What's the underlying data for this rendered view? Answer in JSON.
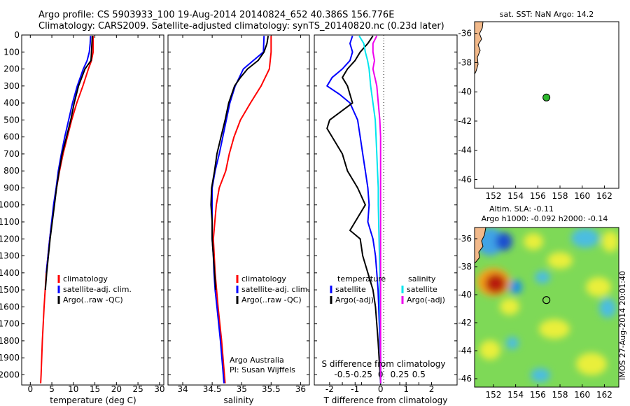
{
  "header": {
    "title_line1": "Argo profile: CS 5903933_100 19-Aug-2014 20140824_652 40.386S 156.776E",
    "title_line2": "Climatology: CARS2009. Satellite-adjusted climatology: synTS_20140820.nc (0.23d later)"
  },
  "colors": {
    "climatology": "#ff0000",
    "satellite": "#0000ff",
    "argo": "#000000",
    "sat_salinity": "#00e5ee",
    "argo_salinity": "#ee00ee",
    "land": "#f2b98a",
    "float_marker": "#2eb82e"
  },
  "chart_data": [
    {
      "type": "line",
      "panel": "temperature",
      "xlabel": "temperature (deg C)",
      "ylabel": "",
      "xlim": [
        -2,
        31
      ],
      "ylim": [
        2060,
        0
      ],
      "xticks": [
        "0",
        "5",
        "10",
        "15",
        "20",
        "25",
        "30"
      ],
      "xtick_values": [
        0,
        5,
        10,
        15,
        20,
        25,
        30
      ],
      "yticks": [
        "0",
        "100",
        "200",
        "300",
        "400",
        "500",
        "600",
        "700",
        "800",
        "900",
        "1000",
        "1100",
        "1200",
        "1300",
        "1400",
        "1500",
        "1600",
        "1700",
        "1800",
        "1900",
        "2000"
      ],
      "ytick_values": [
        0,
        100,
        200,
        300,
        400,
        500,
        600,
        700,
        800,
        900,
        1000,
        1100,
        1200,
        1300,
        1400,
        1500,
        1600,
        1700,
        1800,
        1900,
        2000
      ],
      "legend": [
        "climatology",
        "satellite-adj. clim.",
        "Argo(..raw -QC)"
      ],
      "series": [
        {
          "name": "climatology",
          "color": "#ff0000",
          "depth": [
            5,
            100,
            150,
            200,
            300,
            400,
            500,
            600,
            700,
            800,
            900,
            1000,
            1200,
            1400,
            1600,
            1800,
            2000,
            2050
          ],
          "values": [
            14.6,
            14.6,
            14.2,
            13.5,
            12.2,
            10.8,
            9.6,
            8.6,
            7.6,
            6.8,
            6.1,
            5.5,
            4.5,
            3.7,
            3.2,
            2.8,
            2.5,
            2.4
          ]
        },
        {
          "name": "satellite-adj. clim.",
          "color": "#0000ff",
          "depth": [
            5,
            50,
            100,
            150,
            200,
            300,
            400,
            500,
            600,
            700,
            800,
            900,
            1000,
            1200,
            1400
          ],
          "values": [
            14.0,
            13.9,
            13.7,
            13.2,
            12.3,
            10.9,
            9.8,
            8.9,
            8.0,
            7.2,
            6.5,
            6.0,
            5.4,
            4.5,
            3.7
          ]
        },
        {
          "name": "Argo(..raw -QC)",
          "color": "#000000",
          "depth": [
            5,
            50,
            100,
            150,
            200,
            300,
            400,
            500,
            600,
            700,
            800,
            900,
            1000,
            1200,
            1400,
            1500
          ],
          "values": [
            14.4,
            14.3,
            14.2,
            14.1,
            12.7,
            11.2,
            10.2,
            9.4,
            8.4,
            7.4,
            6.7,
            6.1,
            5.6,
            4.6,
            3.8,
            3.5
          ]
        }
      ]
    },
    {
      "type": "line",
      "panel": "salinity",
      "xlabel": "salinity",
      "ylabel": "",
      "xlim": [
        33.75,
        36.15
      ],
      "ylim": [
        2060,
        0
      ],
      "xticks": [
        "34",
        "34.5",
        "35",
        "35.5",
        "36"
      ],
      "xtick_values": [
        34,
        34.5,
        35,
        35.5,
        36
      ],
      "legend": [
        "climatology",
        "satellite-adj. clim.",
        "Argo(..raw -QC)"
      ],
      "credit_line1": "Argo Australia",
      "credit_line2": "PI: Susan Wijffels",
      "series": [
        {
          "name": "climatology",
          "color": "#ff0000",
          "depth": [
            5,
            100,
            200,
            300,
            400,
            500,
            600,
            700,
            800,
            900,
            1000,
            1200,
            1400,
            1600,
            1800,
            2050
          ],
          "values": [
            35.5,
            35.5,
            35.47,
            35.33,
            35.15,
            34.98,
            34.87,
            34.79,
            34.73,
            34.62,
            34.57,
            34.52,
            34.55,
            34.6,
            34.66,
            34.72
          ]
        },
        {
          "name": "satellite-adj. clim.",
          "color": "#0000ff",
          "depth": [
            5,
            100,
            150,
            200,
            300,
            400,
            500,
            600,
            700,
            800,
            900,
            1000,
            1100,
            1200,
            1300,
            1400,
            1500,
            1600,
            1800,
            2050
          ],
          "values": [
            35.38,
            35.37,
            35.2,
            35.03,
            34.89,
            34.8,
            34.74,
            34.68,
            34.62,
            34.55,
            34.5,
            34.5,
            34.5,
            34.5,
            34.52,
            34.53,
            34.55,
            34.58,
            34.64,
            34.7
          ]
        },
        {
          "name": "Argo(..raw -QC)",
          "color": "#000000",
          "depth": [
            5,
            50,
            100,
            150,
            200,
            250,
            300,
            400,
            500,
            600,
            700,
            800,
            900,
            1000,
            1100,
            1200,
            1300,
            1400,
            1500
          ],
          "values": [
            35.45,
            35.43,
            35.38,
            35.28,
            35.1,
            34.98,
            34.88,
            34.78,
            34.72,
            34.65,
            34.58,
            34.54,
            34.49,
            34.48,
            34.5,
            34.5,
            34.52,
            34.54,
            34.56
          ]
        }
      ]
    },
    {
      "type": "line",
      "panel": "differences",
      "xlabel": "T difference from climatology",
      "x2label": "S difference from climatology",
      "xlim": [
        -2.6,
        3.0
      ],
      "ylim": [
        2060,
        0
      ],
      "xticks": [
        "-2",
        "-1",
        "0",
        "1",
        "2"
      ],
      "xtick_values": [
        -2,
        -1,
        0,
        1,
        2
      ],
      "x2ticks": [
        "-0.5",
        "-0.25",
        "0",
        "0.25",
        "0.5"
      ],
      "x2tick_values": [
        -0.5,
        -0.25,
        0,
        0.25,
        0.5
      ],
      "legend_temperature_title": "temperature",
      "legend_salinity_title": "salinity",
      "legend_temperature": [
        "satellite",
        "Argo(-adj)"
      ],
      "legend_salinity": [
        "satellite",
        "Argo(-adj)"
      ],
      "series": [
        {
          "name": "temperature satellite",
          "color": "#0000ff",
          "depth": [
            5,
            50,
            100,
            150,
            200,
            250,
            300,
            350,
            400,
            500,
            600,
            700,
            800,
            900,
            1000,
            1100,
            1200,
            1300,
            1400,
            1500,
            1700,
            1900,
            2050
          ],
          "values": [
            -1.1,
            -1.2,
            -1.1,
            -1.2,
            -1.5,
            -1.9,
            -2.1,
            -1.6,
            -1.2,
            -0.9,
            -0.8,
            -0.7,
            -0.6,
            -0.5,
            -0.45,
            -0.5,
            -0.3,
            -0.2,
            -0.15,
            -0.1,
            -0.05,
            0,
            0
          ]
        },
        {
          "name": "temperature Argo(-adj)",
          "color": "#000000",
          "depth": [
            5,
            50,
            100,
            150,
            200,
            250,
            300,
            400,
            500,
            550,
            600,
            700,
            800,
            900,
            1000,
            1100,
            1150,
            1200,
            1300,
            1400,
            1500,
            1600,
            1800,
            2050
          ],
          "values": [
            -0.3,
            -0.5,
            -0.8,
            -1.0,
            -1.3,
            -1.5,
            -1.3,
            -1.1,
            -2.0,
            -2.1,
            -1.9,
            -1.5,
            -1.3,
            -0.9,
            -0.6,
            -1.0,
            -1.2,
            -0.8,
            -0.7,
            -0.5,
            -0.3,
            -0.2,
            -0.1,
            0
          ]
        },
        {
          "name": "salinity satellite",
          "color": "#00e5ee",
          "depth": [
            5,
            50,
            100,
            150,
            200,
            300,
            400,
            500,
            600,
            700,
            800,
            900,
            1000,
            1200,
            1400,
            1600,
            1800,
            2050
          ],
          "values": [
            -0.28,
            -0.22,
            -0.2,
            -0.17,
            -0.15,
            -0.13,
            -0.1,
            -0.07,
            -0.06,
            -0.05,
            -0.04,
            -0.03,
            -0.03,
            -0.02,
            -0.01,
            -0.01,
            0,
            0
          ]
        },
        {
          "name": "salinity Argo(-adj)",
          "color": "#ee00ee",
          "depth": [
            5,
            50,
            100,
            150,
            200,
            300,
            400,
            500,
            600,
            700,
            800,
            900,
            1000,
            1200,
            1400,
            1600,
            1800,
            2050
          ],
          "values": [
            -0.05,
            -0.1,
            -0.1,
            -0.08,
            -0.1,
            -0.05,
            -0.03,
            -0.01,
            0,
            0,
            0,
            0,
            0,
            0,
            0,
            0,
            0,
            0
          ]
        }
      ]
    },
    {
      "type": "scatter",
      "panel": "sst_map",
      "title": "sat. SST: NaN Argo: 14.2",
      "xlim": [
        150.3,
        163.3
      ],
      "ylim": [
        -46.6,
        -35.2
      ],
      "xticks": [
        "152",
        "154",
        "156",
        "158",
        "160",
        "162"
      ],
      "xtick_values": [
        152,
        154,
        156,
        158,
        160,
        162
      ],
      "yticks": [
        "-36",
        "-38",
        "-40",
        "-42",
        "-44",
        "-46"
      ],
      "ytick_values": [
        -36,
        -38,
        -40,
        -42,
        -44,
        -46
      ],
      "x": [
        156.776
      ],
      "y": [
        -40.386
      ]
    },
    {
      "type": "heatmap",
      "panel": "sla_map",
      "title_line1": "Altim. SLA: -0.11",
      "title_line2": "Argo h1000: -0.092 h2000: -0.14",
      "side_label": "IMOS 27-Aug-2014 20:01:40",
      "xlim": [
        150.3,
        163.3
      ],
      "ylim": [
        -46.6,
        -35.2
      ],
      "xticks": [
        "152",
        "154",
        "156",
        "158",
        "160",
        "162"
      ],
      "xtick_values": [
        152,
        154,
        156,
        158,
        160,
        162
      ],
      "yticks": [
        "-36",
        "-38",
        "-40",
        "-42",
        "-44",
        "-46"
      ],
      "ytick_values": [
        -36,
        -38,
        -40,
        -42,
        -44,
        -46
      ],
      "x": [
        156.776
      ],
      "y": [
        -40.386
      ]
    }
  ]
}
